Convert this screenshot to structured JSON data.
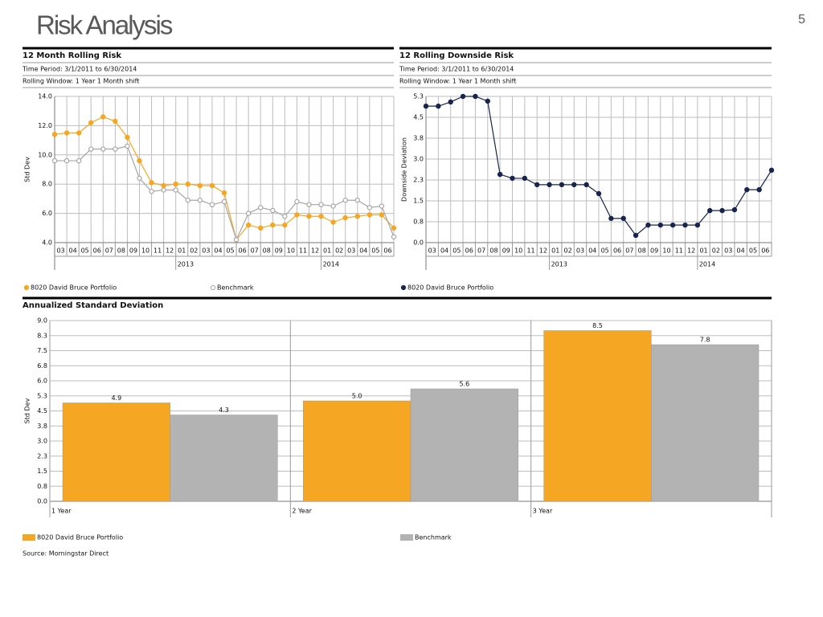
{
  "page": {
    "title": "Risk Analysis",
    "number": "5",
    "source": "Source: Morningstar Direct"
  },
  "chart_data": [
    {
      "type": "line",
      "title": "12 Month Rolling Risk",
      "time_period": "Time Period: 3/1/2011 to 6/30/2014",
      "rolling_window": "Rolling Window: 1 Year 1 Month shift",
      "y_label": "Std Dev",
      "categories": [
        null,
        "03",
        "04",
        "05",
        "06",
        "07",
        "08",
        "09",
        "10",
        "11",
        "12",
        "01",
        "02",
        "03",
        "04",
        "05",
        "06",
        "07",
        "08",
        "09",
        "10",
        "11",
        "12",
        "01",
        "02",
        "03",
        "04",
        "05",
        "06"
      ],
      "year_groups": [
        {
          "label": "2013",
          "start": 11
        },
        {
          "label": "2014",
          "start": 23
        }
      ],
      "series": [
        {
          "name": "8020 David Bruce Portfolio",
          "color": "#f5a623",
          "marker": "filled",
          "values": [
            11.4,
            11.5,
            11.5,
            12.2,
            12.6,
            12.3,
            11.2,
            9.6,
            8.1,
            7.9,
            8.0,
            8.0,
            7.9,
            7.9,
            7.4,
            4.2,
            5.2,
            5.0,
            5.2,
            5.2,
            5.9,
            5.8,
            5.8,
            5.4,
            5.7,
            5.8,
            5.9,
            5.9,
            5.0
          ]
        },
        {
          "name": "Benchmark",
          "color": "#a6a6a6",
          "marker": "open",
          "values": [
            9.6,
            9.6,
            9.6,
            10.4,
            10.4,
            10.4,
            10.6,
            8.4,
            7.5,
            7.6,
            7.6,
            6.9,
            6.9,
            6.6,
            6.8,
            4.2,
            6.0,
            6.4,
            6.2,
            5.8,
            6.8,
            6.6,
            6.6,
            6.5,
            6.9,
            6.9,
            6.4,
            6.5,
            4.4
          ]
        }
      ],
      "ylim": [
        4,
        14
      ],
      "yticks": [
        {
          "value": 4,
          "label": "4.0"
        },
        {
          "value": 6,
          "label": "6.0"
        },
        {
          "value": 8,
          "label": "8.0"
        },
        {
          "value": 10,
          "label": "10.0"
        },
        {
          "value": 12,
          "label": "12.0"
        },
        {
          "value": 14,
          "label": "14.0"
        }
      ],
      "grid": true
    },
    {
      "type": "line",
      "title": "12 Rolling Downside Risk",
      "time_period": "Time Period: 3/1/2011 to 6/30/2014",
      "rolling_window": "Rolling Window: 1 Year 1 Month shift",
      "y_label": "Downside Deviation",
      "categories": [
        null,
        "03",
        "04",
        "05",
        "06",
        "07",
        "08",
        "09",
        "10",
        "11",
        "12",
        "01",
        "02",
        "03",
        "04",
        "05",
        "06",
        "07",
        "08",
        "09",
        "10",
        "11",
        "12",
        "01",
        "02",
        "03",
        "04",
        "05",
        "06"
      ],
      "year_groups": [
        {
          "label": "2013",
          "start": 11
        },
        {
          "label": "2014",
          "start": 23
        }
      ],
      "series": [
        {
          "name": "8020 David Bruce Portfolio",
          "color": "#17254f",
          "marker": "filled",
          "values": [
            4.9,
            4.9,
            5.05,
            5.25,
            5.25,
            5.08,
            2.45,
            2.31,
            2.31,
            2.08,
            2.08,
            2.08,
            2.08,
            2.08,
            1.76,
            0.87,
            0.87,
            0.26,
            0.63,
            0.63,
            0.63,
            0.63,
            0.63,
            1.15,
            1.15,
            1.18,
            1.9,
            1.9,
            2.6
          ]
        }
      ],
      "ylim": [
        0,
        5.25
      ],
      "yticks": [
        {
          "value": 0,
          "label": "0.0"
        },
        {
          "value": 0.75,
          "label": "0.8"
        },
        {
          "value": 1.5,
          "label": "1.5"
        },
        {
          "value": 2.25,
          "label": "2.3"
        },
        {
          "value": 3,
          "label": "3.0"
        },
        {
          "value": 3.75,
          "label": "3.8"
        },
        {
          "value": 4.5,
          "label": "4.5"
        },
        {
          "value": 5.25,
          "label": "5.3"
        }
      ],
      "grid": true
    },
    {
      "type": "bar",
      "title": "Annualized Standard Deviation",
      "y_label": "Std Dev",
      "categories": [
        "1 Year",
        "2 Year",
        "3 Year"
      ],
      "series": [
        {
          "name": "8020 David Bruce Portfolio",
          "color": "#f5a623",
          "values": [
            4.9,
            5.0,
            8.5
          ],
          "value_labels": [
            "4.9",
            "5.0",
            "8.5"
          ]
        },
        {
          "name": "Benchmark",
          "color": "#b3b3b3",
          "values": [
            4.3,
            5.6,
            7.8
          ],
          "value_labels": [
            "4.3",
            "5.6",
            "7.8"
          ]
        }
      ],
      "ylim": [
        0,
        9
      ],
      "yticks": [
        {
          "value": 0,
          "label": "0.0"
        },
        {
          "value": 0.75,
          "label": "0.8"
        },
        {
          "value": 1.5,
          "label": "1.5"
        },
        {
          "value": 2.25,
          "label": "2.3"
        },
        {
          "value": 3,
          "label": "3.0"
        },
        {
          "value": 3.75,
          "label": "3.8"
        },
        {
          "value": 4.5,
          "label": "4.5"
        },
        {
          "value": 5.25,
          "label": "5.3"
        },
        {
          "value": 6,
          "label": "6.0"
        },
        {
          "value": 6.75,
          "label": "6.8"
        },
        {
          "value": 7.5,
          "label": "7.5"
        },
        {
          "value": 8.25,
          "label": "8.3"
        },
        {
          "value": 9,
          "label": "9.0"
        }
      ],
      "grid": true
    }
  ]
}
